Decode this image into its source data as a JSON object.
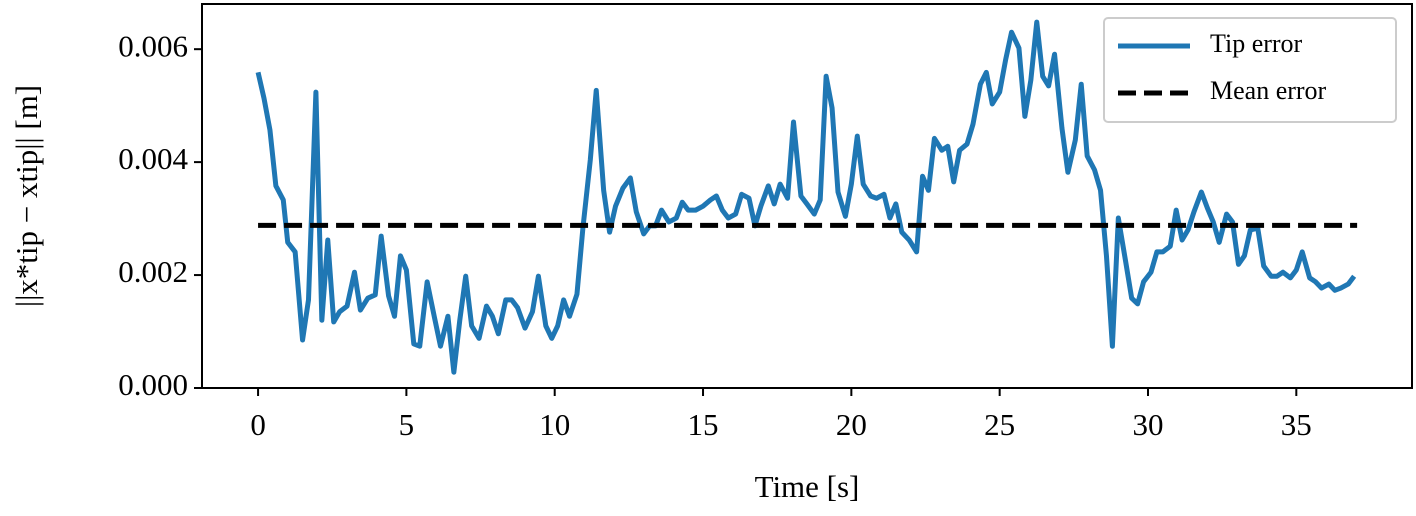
{
  "chart_data": {
    "type": "line",
    "xlabel": "Time [s]",
    "ylabel": "||x*tip − xtip|| [m]",
    "xlim": [
      -1.89,
      38.9
    ],
    "ylim": [
      0,
      0.0068
    ],
    "xticks": [
      0,
      5,
      10,
      15,
      20,
      25,
      30,
      35
    ],
    "yticks": [
      {
        "value": 0,
        "label": "0.000"
      },
      {
        "value": 0.002,
        "label": "0.002"
      },
      {
        "value": 0.004,
        "label": "0.004"
      },
      {
        "value": 0.006,
        "label": "0.006"
      }
    ],
    "grid": false,
    "legend": "upper right",
    "series": [
      {
        "name": "Tip error",
        "color": "#1f77b4",
        "dash": "solid",
        "x": [
          0,
          0.2,
          0.4,
          0.6,
          0.85,
          1.0,
          1.25,
          1.5,
          1.7,
          1.95,
          2.15,
          2.35,
          2.55,
          2.75,
          3.0,
          3.25,
          3.45,
          3.7,
          3.95,
          4.15,
          4.4,
          4.6,
          4.8,
          5.0,
          5.25,
          5.45,
          5.7,
          5.95,
          6.15,
          6.4,
          6.6,
          6.8,
          7.0,
          7.2,
          7.45,
          7.7,
          7.9,
          8.1,
          8.35,
          8.55,
          8.75,
          9.0,
          9.25,
          9.45,
          9.7,
          9.9,
          10.1,
          10.3,
          10.5,
          10.75,
          10.95,
          11.2,
          11.4,
          11.65,
          11.85,
          12.05,
          12.3,
          12.55,
          12.75,
          13.0,
          13.2,
          13.4,
          13.6,
          13.85,
          14.1,
          14.3,
          14.5,
          14.75,
          15.0,
          15.25,
          15.45,
          15.65,
          15.85,
          16.1,
          16.3,
          16.55,
          16.75,
          16.95,
          17.2,
          17.4,
          17.6,
          17.85,
          18.05,
          18.3,
          18.5,
          18.75,
          18.95,
          19.15,
          19.35,
          19.55,
          19.8,
          20.0,
          20.2,
          20.4,
          20.65,
          20.85,
          21.1,
          21.3,
          21.5,
          21.7,
          21.95,
          22.2,
          22.4,
          22.6,
          22.8,
          23.05,
          23.25,
          23.45,
          23.65,
          23.9,
          24.1,
          24.35,
          24.55,
          24.75,
          25.0,
          25.2,
          25.4,
          25.65,
          25.85,
          26.05,
          26.25,
          26.45,
          26.65,
          26.85,
          27.1,
          27.3,
          27.55,
          27.75,
          27.95,
          28.2,
          28.4,
          28.6,
          28.8,
          29.0,
          29.25,
          29.45,
          29.65,
          29.85,
          30.1,
          30.3,
          30.5,
          30.75,
          30.95,
          31.15,
          31.35,
          31.55,
          31.8,
          32.0,
          32.2,
          32.4,
          32.65,
          32.85,
          33.05,
          33.25,
          33.45,
          33.7,
          33.9,
          34.15,
          34.35,
          34.55,
          34.8,
          35.0,
          35.2,
          35.45,
          35.65,
          35.85,
          36.1,
          36.3,
          36.5,
          36.75,
          36.95
        ],
        "values": [
          0.00559,
          0.00513,
          0.00457,
          0.00358,
          0.00333,
          0.00258,
          0.00241,
          0.00085,
          0.00156,
          0.00524,
          0.0012,
          0.00262,
          0.00117,
          0.00135,
          0.00145,
          0.00205,
          0.00138,
          0.00159,
          0.00165,
          0.00269,
          0.00163,
          0.00127,
          0.00234,
          0.00209,
          0.00078,
          0.00074,
          0.00188,
          0.00124,
          0.00074,
          0.00127,
          0.00028,
          0.0012,
          0.00198,
          0.0011,
          0.00088,
          0.00145,
          0.00127,
          0.00096,
          0.00156,
          0.00156,
          0.00142,
          0.00106,
          0.00135,
          0.00198,
          0.0011,
          0.00088,
          0.0011,
          0.00156,
          0.00127,
          0.00166,
          0.00283,
          0.00404,
          0.00527,
          0.0035,
          0.00276,
          0.00322,
          0.00354,
          0.00372,
          0.00312,
          0.00273,
          0.00287,
          0.00287,
          0.00315,
          0.00294,
          0.00301,
          0.00329,
          0.00315,
          0.00315,
          0.00322,
          0.00333,
          0.0034,
          0.00315,
          0.00301,
          0.00308,
          0.00343,
          0.00336,
          0.00287,
          0.00322,
          0.00358,
          0.00326,
          0.00361,
          0.00336,
          0.00471,
          0.0034,
          0.00326,
          0.00308,
          0.00333,
          0.00552,
          0.00496,
          0.00347,
          0.00304,
          0.00361,
          0.00446,
          0.00361,
          0.0034,
          0.00336,
          0.00343,
          0.00301,
          0.00326,
          0.00276,
          0.00262,
          0.00241,
          0.00375,
          0.0035,
          0.00442,
          0.00421,
          0.00428,
          0.00365,
          0.00421,
          0.00432,
          0.00467,
          0.00538,
          0.00559,
          0.00503,
          0.00524,
          0.00581,
          0.0063,
          0.00602,
          0.00481,
          0.00545,
          0.00648,
          0.00552,
          0.00535,
          0.00591,
          0.0046,
          0.00382,
          0.00439,
          0.00538,
          0.00411,
          0.00386,
          0.0035,
          0.00234,
          0.00074,
          0.00301,
          0.00223,
          0.00159,
          0.00149,
          0.00188,
          0.00205,
          0.00241,
          0.00241,
          0.00251,
          0.00315,
          0.00262,
          0.0028,
          0.00312,
          0.00347,
          0.00319,
          0.00294,
          0.00258,
          0.00308,
          0.00294,
          0.00219,
          0.00234,
          0.0028,
          0.00283,
          0.00216,
          0.00198,
          0.00198,
          0.00205,
          0.00195,
          0.00209,
          0.00241,
          0.00195,
          0.00188,
          0.00177,
          0.00184,
          0.00173,
          0.00177,
          0.00184,
          0.00198
        ]
      },
      {
        "name": "Mean error",
        "color": "#000000",
        "dash": "dashed",
        "x": [
          0,
          37.05
        ],
        "values": [
          0.00288,
          0.00288
        ]
      }
    ]
  }
}
